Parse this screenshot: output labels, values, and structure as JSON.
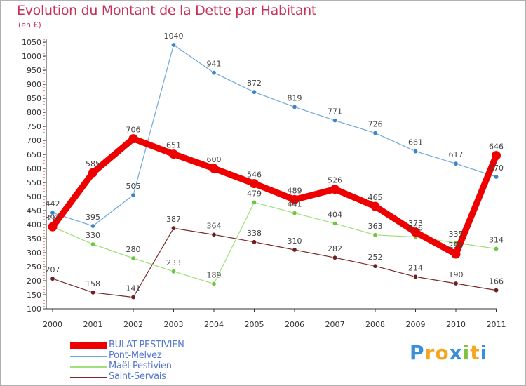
{
  "title": "Evolution du Montant de la Dette par Habitant",
  "subtitle": "(en €)",
  "logo": {
    "text": "Proxiti",
    "letters": [
      "P",
      "r",
      "o",
      "x",
      "i",
      "t",
      "i"
    ],
    "letter_colors": [
      "#3a8fd8",
      "#f5a623",
      "#f5a623",
      "#3a8fd8",
      "#7dc242",
      "#f5a623",
      "#3a8fd8"
    ]
  },
  "chart_data": {
    "type": "line",
    "title": "Evolution du Montant de la Dette par Habitant",
    "ylabel": "(en €)",
    "xlabel": "",
    "x": [
      "2000",
      "2001",
      "2002",
      "2003",
      "2004",
      "2005",
      "2006",
      "2007",
      "2008",
      "2009",
      "2010",
      "2011"
    ],
    "ylim": [
      100,
      1050
    ],
    "yticks": [
      100,
      150,
      200,
      250,
      300,
      350,
      400,
      450,
      500,
      550,
      600,
      650,
      700,
      750,
      800,
      850,
      900,
      950,
      1000,
      1050
    ],
    "grid": false,
    "legend_position": "bottom-left",
    "series": [
      {
        "name": "BULAT-PESTIVIEN",
        "values": [
          392,
          585,
          706,
          651,
          600,
          546,
          489,
          526,
          465,
          373,
          295,
          646
        ],
        "value_labels": [
          "392",
          "585",
          "706",
          "651",
          "600",
          "546",
          "489",
          "526",
          "465",
          "373",
          "295",
          "646"
        ],
        "color": "#ee0000",
        "marker_color": "#ee0000",
        "emphasis": true
      },
      {
        "name": "Pont-Melvez",
        "values": [
          442,
          395,
          505,
          1040,
          941,
          872,
          819,
          771,
          726,
          661,
          617,
          570
        ],
        "value_labels": [
          "442",
          "395",
          "505",
          "1040",
          "941",
          "872",
          "819",
          "771",
          "726",
          "661",
          "617",
          "570"
        ],
        "color": "#6fa8dc",
        "marker_color": "#3d85c6",
        "emphasis": false
      },
      {
        "name": "Maël-Pestivien",
        "values": [
          392,
          330,
          280,
          233,
          189,
          479,
          441,
          404,
          363,
          356,
          335,
          314
        ],
        "value_labels": [
          "392",
          "330",
          "280",
          "233",
          "189",
          "479",
          "441",
          "404",
          "363",
          "356",
          "335",
          "314"
        ],
        "color": "#9fe07a",
        "marker_color": "#6cc644",
        "emphasis": false
      },
      {
        "name": "Saint-Servais",
        "values": [
          207,
          158,
          141,
          387,
          364,
          338,
          310,
          282,
          252,
          214,
          190,
          166
        ],
        "value_labels": [
          "207",
          "158",
          "141",
          "387",
          "364",
          "338",
          "310",
          "282",
          "252",
          "214",
          "190",
          "166"
        ],
        "color": "#7b2a2a",
        "marker_color": "#6e1e1e",
        "emphasis": false
      }
    ]
  }
}
